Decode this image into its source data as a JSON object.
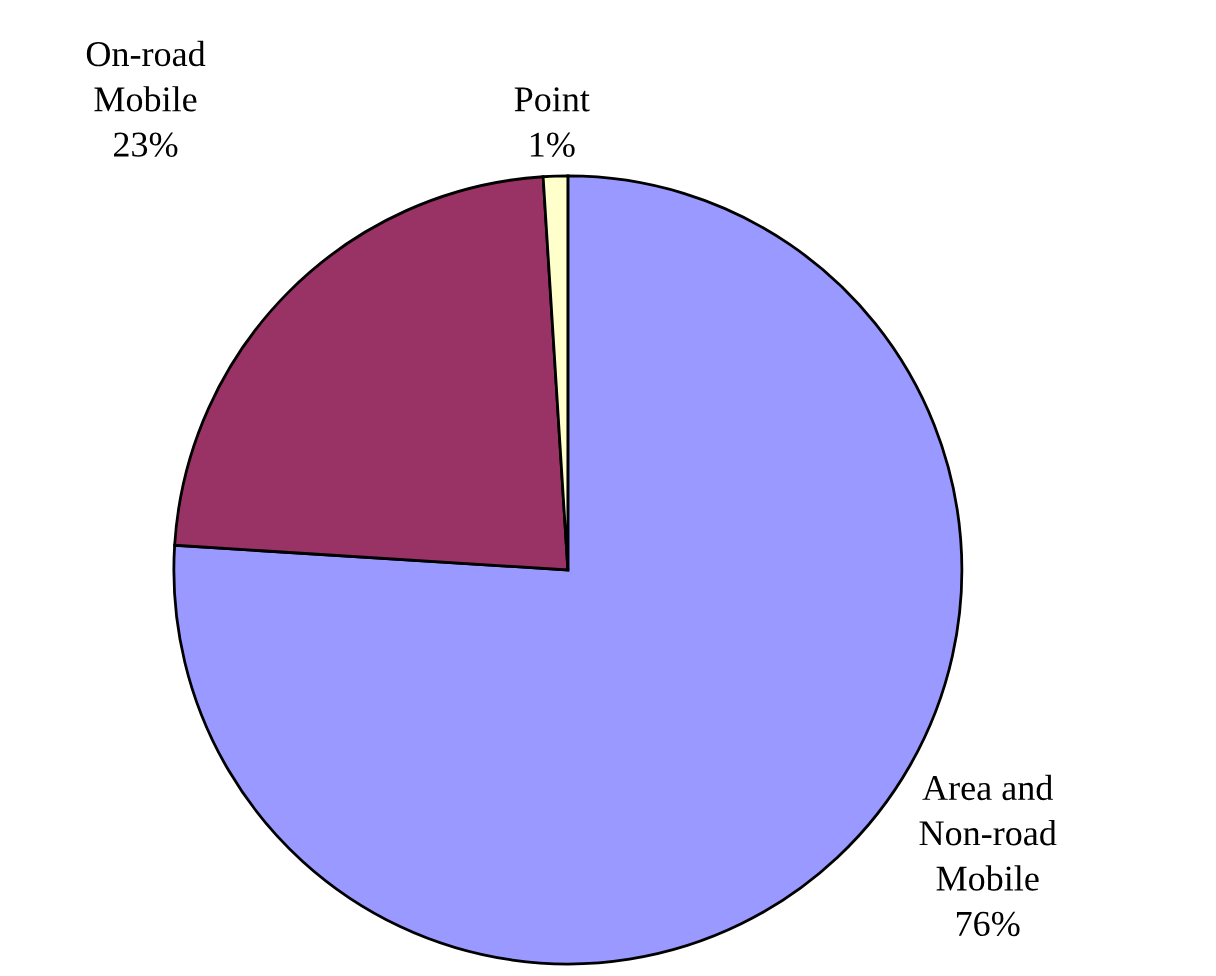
{
  "chart_data": {
    "type": "pie",
    "categories": [
      "Area and\nNon-road\nMobile",
      "On-road\nMobile",
      "Point"
    ],
    "values": [
      76,
      23,
      1
    ],
    "value_labels": [
      "76%",
      "23%",
      "1%"
    ],
    "colors": [
      "#9999ff",
      "#993366",
      "#ffffcc"
    ]
  }
}
